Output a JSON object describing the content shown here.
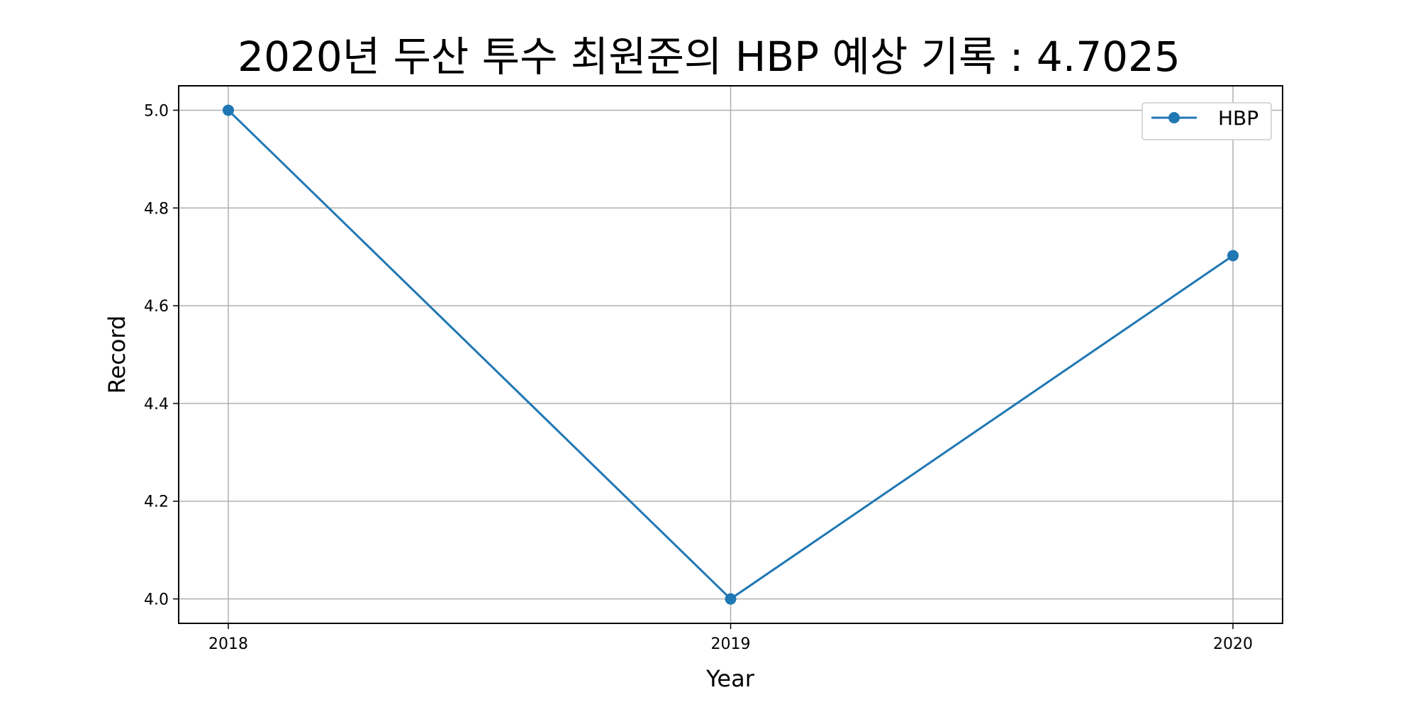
{
  "chart_data": {
    "type": "line",
    "title": "2020년 두산 투수 최원준의 HBP 예상 기록 : 4.7025",
    "xlabel": "Year",
    "ylabel": "Record",
    "x": [
      "2018",
      "2019",
      "2020"
    ],
    "series": [
      {
        "name": "HBP",
        "values": [
          5.0,
          4.0,
          4.7025
        ],
        "color": "#1f77b4",
        "marker": "circle"
      }
    ],
    "ylim": [
      3.95,
      5.05
    ],
    "yticks": [
      "4.0",
      "4.2",
      "4.4",
      "4.6",
      "4.8",
      "5.0"
    ],
    "grid": true,
    "legend_position": "top-right"
  },
  "colors": {
    "grid": "#b0b0b0",
    "axes": "#000000",
    "legend_border": "#cccccc"
  }
}
